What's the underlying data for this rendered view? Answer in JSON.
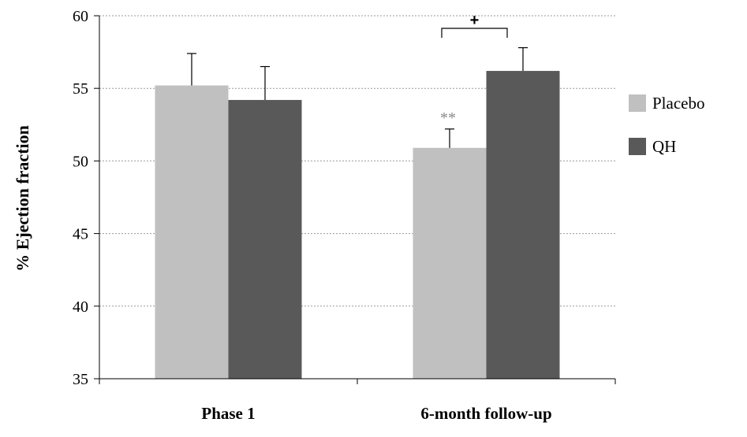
{
  "chart_data": {
    "type": "bar",
    "categories": [
      "Phase 1",
      "6-month follow-up"
    ],
    "series": [
      {
        "name": "Placebo",
        "color": "#c0c0c0",
        "values": [
          55.2,
          50.9
        ],
        "errors": [
          2.2,
          1.3
        ]
      },
      {
        "name": "QH",
        "color": "#595959",
        "values": [
          54.2,
          56.2
        ],
        "errors": [
          2.3,
          1.6
        ]
      }
    ],
    "title": "",
    "xlabel": "",
    "ylabel": "% Ejection fraction",
    "ylim": [
      35,
      60
    ],
    "yticks": [
      "35",
      "40",
      "45",
      "50",
      "55",
      "60"
    ],
    "grid": true,
    "legend_position": "right",
    "annotations": [
      {
        "text": "**",
        "category": "6-month follow-up",
        "series": "Placebo"
      },
      {
        "text": "+",
        "category": "6-month follow-up",
        "bracket": [
          "Placebo",
          "QH"
        ]
      }
    ]
  }
}
